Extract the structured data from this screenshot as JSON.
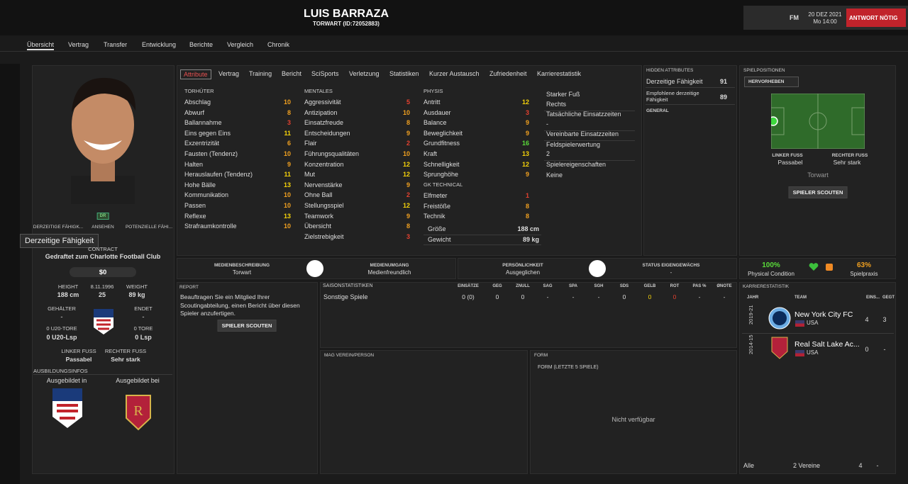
{
  "header": {
    "name": "LUIS BARRAZA",
    "subtitle": "TORWART (ID:72052883)",
    "fm": "FM",
    "date": "20 DEZ 2021",
    "time": "Mo 14:00",
    "action": "ANTWORT NÖTIG"
  },
  "nav": [
    "Übersicht",
    "Vertrag",
    "Transfer",
    "Entwicklung",
    "Berichte",
    "Vergleich",
    "Chronik"
  ],
  "profile": {
    "badge": "DR",
    "rating_labels": [
      "DERZEITIGE FÄHIGK...",
      "ANSEHEN",
      "POTENZIELLE FÄHI..."
    ],
    "tooltip": "Derzeitige Fähigkeit",
    "contract_label": "CONTRACT",
    "contract": "Gedraftet zum Charlotte Football Club",
    "wage": "$0",
    "height_label": "HEIGHT",
    "height": "188 cm",
    "birth": "8.11.1996",
    "age": "25",
    "weight_label": "WEIGHT",
    "weight": "89 kg",
    "salary_label": "GEHÄLTER",
    "salary": "-",
    "ends_label": "ENDET",
    "ends": "-",
    "u20_goals": "0 U20-TORE",
    "u20_caps": "0 U20-Lsp",
    "goals": "0 TORE",
    "caps": "0 Lsp",
    "left_foot_label": "LINKER FUSS",
    "left_foot": "Passabel",
    "right_foot_label": "RECHTER FUSS",
    "right_foot": "Sehr stark",
    "training_label": "AUSBILDUNGSINFOS",
    "trained_in": "Ausgebildet in",
    "trained_at": "Ausgebildet bei"
  },
  "tabs": [
    "Attribute",
    "Vertrag",
    "Training",
    "Bericht",
    "SciSports",
    "Verletzung",
    "Statistiken",
    "Kurzer Austausch",
    "Zufriedenheit",
    "Karrierestatistik"
  ],
  "attributes": [
    {
      "group": "TORHÜTER",
      "items": [
        [
          "Abschlag",
          10
        ],
        [
          "Abwurf",
          8
        ],
        [
          "Ballannahme",
          3
        ],
        [
          "Eins gegen Eins",
          11
        ],
        [
          "Exzentrizität",
          6
        ],
        [
          "Fausten (Tendenz)",
          10
        ],
        [
          "Halten",
          9
        ],
        [
          "Herauslaufen (Tendenz)",
          11
        ],
        [
          "Hohe Bälle",
          13
        ],
        [
          "Kommunikation",
          10
        ],
        [
          "Passen",
          10
        ],
        [
          "Reflexe",
          13
        ],
        [
          "Strafraumkontrolle",
          10
        ]
      ]
    },
    {
      "group": "MENTALES",
      "items": [
        [
          "Aggressivität",
          5
        ],
        [
          "Antizipation",
          10
        ],
        [
          "Einsatzfreude",
          8
        ],
        [
          "Entscheidungen",
          9
        ],
        [
          "Flair",
          2
        ],
        [
          "Führungsqualitäten",
          10
        ],
        [
          "Konzentration",
          12
        ],
        [
          "Mut",
          12
        ],
        [
          "Nervenstärke",
          9
        ],
        [
          "Ohne Ball",
          2
        ],
        [
          "Stellungsspiel",
          12
        ],
        [
          "Teamwork",
          9
        ],
        [
          "Übersicht",
          8
        ],
        [
          "Zielstrebigkeit",
          3
        ]
      ]
    },
    {
      "group": "PHYSIS",
      "items": [
        [
          "Antritt",
          12
        ],
        [
          "Ausdauer",
          3
        ],
        [
          "Balance",
          9
        ],
        [
          "Beweglichkeit",
          9
        ],
        [
          "Grundfitness",
          16
        ],
        [
          "Kraft",
          13
        ],
        [
          "Schnelligkeit",
          12
        ],
        [
          "Sprunghöhe",
          9
        ]
      ]
    },
    {
      "group": "GK TECHNICAL",
      "items": [
        [
          "Elfmeter",
          1
        ],
        [
          "Freistöße",
          8
        ],
        [
          "Technik",
          8
        ]
      ]
    }
  ],
  "physical": [
    [
      "Größe",
      "188 cm"
    ],
    [
      "Gewicht",
      "89 kg"
    ]
  ],
  "side_info": [
    "Starker Fuß",
    "Rechts",
    "Tatsächliche Einsatzzeiten",
    "-",
    "Vereinbarte Einsatzzeiten",
    "Feldspielerwertung",
    "2",
    "Spielereigenschaften",
    "Keine"
  ],
  "hidden": {
    "title": "HIDDEN ATTRIBUTES",
    "rows": [
      [
        "Derzeitige Fähigkeit",
        "91"
      ],
      [
        "Empfohlene derzeitige Fähigkeit",
        "89"
      ]
    ],
    "section": "GENERAL"
  },
  "positions": {
    "title": "SPIELPOSITIONEN",
    "highlight": "HERVORHEBEN",
    "left_foot_label": "LINKER FUSS",
    "left_foot": "Passabel",
    "right_foot_label": "RECHTER FUSS",
    "right_foot": "Sehr stark",
    "position": "Torwart",
    "scout": "SPIELER SCOUTEN"
  },
  "media": [
    [
      "MEDIENBESCHREIBUNG",
      "Torwart"
    ],
    [
      "MEDIENUMGANG",
      "Medienfreundlich"
    ],
    [
      "PERSÖNLICHKEIT",
      "Ausgeglichen"
    ],
    [
      "STATUS EIGENGEWÄCHS",
      "-"
    ]
  ],
  "condition": [
    [
      "100%",
      "Physical Condition"
    ],
    [
      "63%",
      "Spielpraxis"
    ]
  ],
  "report": {
    "title": "REPORT",
    "text": "Beauftragen Sie ein Mitglied Ihrer Scoutingabteilung, einen Bericht über diesen Spieler anzufertigen.",
    "button": "SPIELER SCOUTEN"
  },
  "season": {
    "title": "SAISONSTATISTIKEN",
    "columns": [
      "EINSÄTZE",
      "GEG",
      "ZNULL",
      "SAG",
      "SPA",
      "SGH",
      "SDS",
      "GELB",
      "ROT",
      "PAS %",
      "ØNOTE"
    ],
    "row_label": "Sonstige Spiele",
    "row": [
      "0 (0)",
      "0",
      "0",
      "-",
      "-",
      "-",
      "0",
      "0",
      "0",
      "-",
      "-"
    ]
  },
  "likes": {
    "title": "MAG VEREIN/PERSON"
  },
  "form": {
    "title": "FORM",
    "subtitle": "FORM (LETZTE 5 SPIELE)",
    "empty": "Nicht verfügbar"
  },
  "career": {
    "title": "KARRIERESTATISTIK",
    "columns": [
      "JAHR",
      "TEAM",
      "EINS...",
      "GEGT"
    ],
    "rows": [
      [
        "2019-21",
        "New York City FC",
        "USA",
        "4",
        "3"
      ],
      [
        "2014-15",
        "Real Salt Lake Ac...",
        "USA",
        "0",
        "-"
      ]
    ],
    "footer": [
      "Alle",
      "2 Vereine",
      "4",
      "-"
    ]
  }
}
